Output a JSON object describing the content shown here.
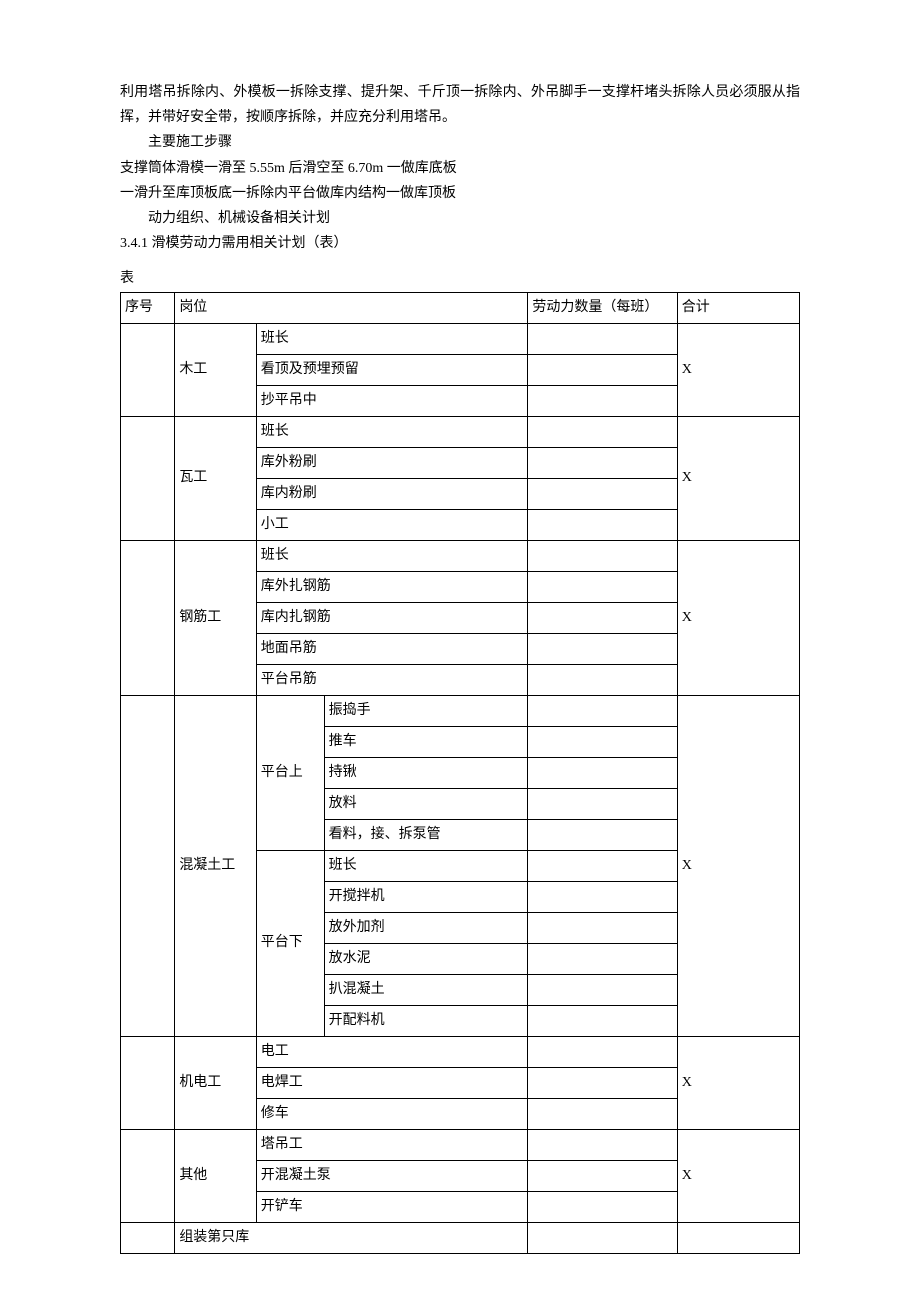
{
  "paragraphs": {
    "p1": "利用塔吊拆除内、外模板一拆除支撑、提升架、千斤顶一拆除内、外吊脚手一支撑杆堵头拆除人员必须服从指挥，并带好安全带，按顺序拆除，并应充分利用塔吊。",
    "p2": "主要施工步骤",
    "p3": "支撑筒体滑模一滑至 5.55m 后滑空至 6.70m 一做库底板",
    "p4": "一滑升至库顶板底一拆除内平台做库内结构一做库顶板",
    "p5": "动力组织、机械设备相关计划",
    "p6": "3.4.1 滑模劳动力需用相关计划（表）",
    "tableCaption": "表"
  },
  "headers": {
    "seq": "序号",
    "role": "岗位",
    "qty": "劳动力数量（每班）",
    "sum": "合计"
  },
  "groups": {
    "carpenter": {
      "name": "木工",
      "sum": "X",
      "items": [
        "班长",
        "看顶及预埋预留",
        "抄平吊中"
      ]
    },
    "mason": {
      "name": "瓦工",
      "sum": "X",
      "items": [
        "班长",
        "库外粉刷",
        "库内粉刷",
        "小工"
      ]
    },
    "rebar": {
      "name": "钢筋工",
      "sum": "X",
      "items": [
        "班长",
        "库外扎钢筋",
        "库内扎钢筋",
        "地面吊筋",
        "平台吊筋"
      ]
    },
    "concrete": {
      "name": "混凝土工",
      "sum": "X",
      "upperName": "平台上",
      "upper": [
        "振捣手",
        "推车",
        "持锹",
        "放料",
        "看料，接、拆泵管"
      ],
      "lowerName": "平台下",
      "lower": [
        "班长",
        "开搅拌机",
        "放外加剂",
        "放水泥",
        "扒混凝土",
        "开配料机"
      ]
    },
    "electrical": {
      "name": "机电工",
      "sum": "X",
      "items": [
        "电工",
        "电焊工",
        "修车"
      ]
    },
    "other": {
      "name": "其他",
      "sum": "X",
      "items": [
        "塔吊工",
        "开混凝土泵",
        "开铲车"
      ]
    },
    "assembly": {
      "name": "组装第只库"
    }
  }
}
